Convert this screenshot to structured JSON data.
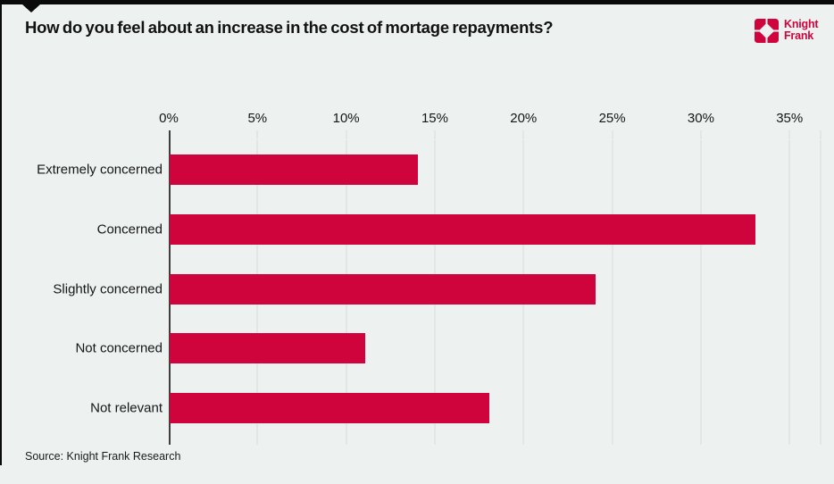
{
  "header": {
    "title": "How do you feel about an increase in the cost of mortage repayments?",
    "logo": {
      "line1": "Knight",
      "line2": "Frank"
    }
  },
  "footer": {
    "source": "Source: Knight Frank Research"
  },
  "colors": {
    "brand_red": "#d0043c",
    "background": "#edf1f0",
    "gridline": "#d8dcda",
    "axis_line": "#3f3f3f",
    "text": "#141414"
  },
  "chart_data": {
    "type": "bar",
    "orientation": "horizontal",
    "title": "How do you feel about an increase in the cost of mortage repayments?",
    "categories": [
      "Extremely concerned",
      "Concerned",
      "Slightly concerned",
      "Not concerned",
      "Not relevant"
    ],
    "values": [
      14,
      33,
      24,
      11,
      18
    ],
    "unit": "%",
    "x_tick_labels": [
      "0%",
      "5%",
      "10%",
      "15%",
      "20%",
      "25%",
      "30%",
      "35%"
    ],
    "x_tick_values": [
      0,
      5,
      10,
      15,
      20,
      25,
      30,
      35
    ],
    "xlim": [
      0,
      36.75
    ],
    "grid": true,
    "legend": false,
    "bar_color": "#d0043c",
    "source": "Source: Knight Frank Research"
  }
}
